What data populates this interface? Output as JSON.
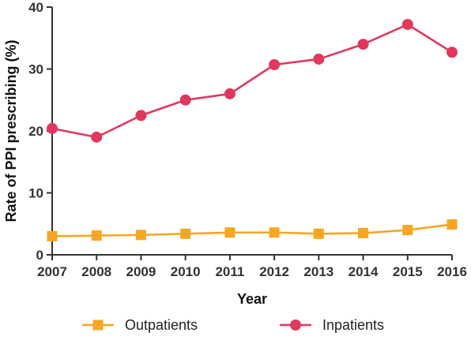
{
  "chart_data": {
    "type": "line",
    "title": "",
    "xlabel": "Year",
    "ylabel": "Rate of PPI prescribing (%)",
    "x": [
      2007,
      2008,
      2009,
      2010,
      2011,
      2012,
      2013,
      2014,
      2015,
      2016
    ],
    "xticks": [
      "2007",
      "2008",
      "2009",
      "2010",
      "2011",
      "2012",
      "2013",
      "2014",
      "2015",
      "2016"
    ],
    "ylim": [
      0,
      40
    ],
    "yticks": [
      0,
      10,
      20,
      30,
      40
    ],
    "grid": false,
    "legend_position": "bottom",
    "series": [
      {
        "name": "Outpatients",
        "marker": "square",
        "color": "#f5a623",
        "values": [
          3.0,
          3.1,
          3.2,
          3.4,
          3.6,
          3.6,
          3.4,
          3.5,
          4.0,
          4.9
        ]
      },
      {
        "name": "Inpatients",
        "marker": "circle",
        "color": "#e0385c",
        "values": [
          20.4,
          19.0,
          22.5,
          25.0,
          26.0,
          30.7,
          31.6,
          34.0,
          37.2,
          32.7
        ]
      }
    ]
  }
}
